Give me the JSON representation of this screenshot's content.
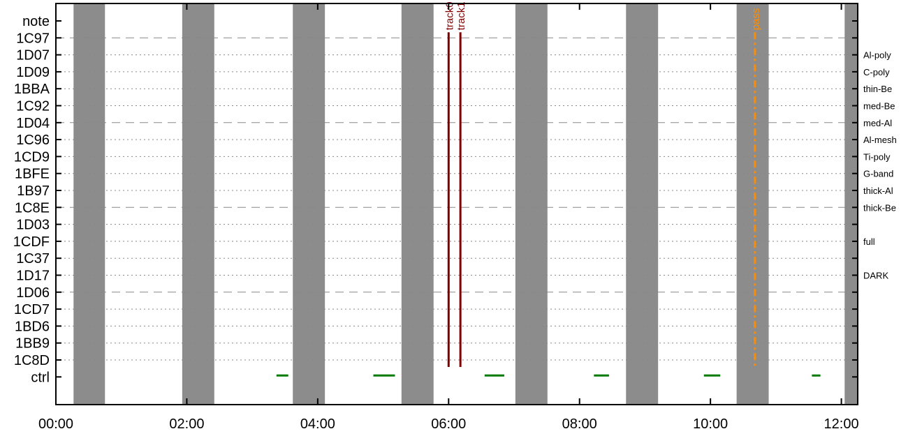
{
  "chart_data": {
    "type": "timeline",
    "title": "",
    "xlabel": "",
    "ylabel": "",
    "x_unit": "hours",
    "xlim": [
      0,
      12.25
    ],
    "x_ticks": [
      {
        "value": 0,
        "label": "00:00"
      },
      {
        "value": 2,
        "label": "02:00"
      },
      {
        "value": 4,
        "label": "04:00"
      },
      {
        "value": 6,
        "label": "06:00"
      },
      {
        "value": 8,
        "label": "08:00"
      },
      {
        "value": 10,
        "label": "10:00"
      },
      {
        "value": 12,
        "label": "12:00"
      }
    ],
    "rows": [
      {
        "label": "note",
        "note": "",
        "grid": "none"
      },
      {
        "label": "1C97",
        "note": "",
        "grid": "dashed"
      },
      {
        "label": "1D07",
        "note": "Al-poly",
        "grid": "dotted"
      },
      {
        "label": "1D09",
        "note": "C-poly",
        "grid": "dotted"
      },
      {
        "label": "1BBA",
        "note": "thin-Be",
        "grid": "dotted"
      },
      {
        "label": "1C92",
        "note": "med-Be",
        "grid": "dotted"
      },
      {
        "label": "1D04",
        "note": "med-Al",
        "grid": "dashed"
      },
      {
        "label": "1C96",
        "note": "Al-mesh",
        "grid": "dotted"
      },
      {
        "label": "1CD9",
        "note": "Ti-poly",
        "grid": "dotted"
      },
      {
        "label": "1BFE",
        "note": "G-band",
        "grid": "dotted"
      },
      {
        "label": "1B97",
        "note": "thick-Al",
        "grid": "dotted"
      },
      {
        "label": "1C8E",
        "note": "thick-Be",
        "grid": "dashed"
      },
      {
        "label": "1D03",
        "note": "",
        "grid": "dotted"
      },
      {
        "label": "1CDF",
        "note": "full",
        "grid": "dotted"
      },
      {
        "label": "1C37",
        "note": "",
        "grid": "dotted"
      },
      {
        "label": "1D17",
        "note": "DARK",
        "grid": "dotted"
      },
      {
        "label": "1D06",
        "note": "",
        "grid": "dashed"
      },
      {
        "label": "1CD7",
        "note": "",
        "grid": "dotted"
      },
      {
        "label": "1BD6",
        "note": "",
        "grid": "dotted"
      },
      {
        "label": "1BB9",
        "note": "",
        "grid": "dotted"
      },
      {
        "label": "1C8D",
        "note": "",
        "grid": "dotted"
      },
      {
        "label": "ctrl",
        "note": "",
        "grid": "none"
      }
    ],
    "gray_bands": [
      [
        0.27,
        0.75
      ],
      [
        1.93,
        2.42
      ],
      [
        3.62,
        4.11
      ],
      [
        5.28,
        5.77
      ],
      [
        7.02,
        7.51
      ],
      [
        8.71,
        9.2
      ],
      [
        10.4,
        10.89
      ],
      [
        12.05,
        12.54
      ]
    ],
    "ctrl_segments": [
      [
        3.37,
        3.55
      ],
      [
        4.85,
        5.18
      ],
      [
        6.55,
        6.85
      ],
      [
        8.22,
        8.45
      ],
      [
        9.9,
        10.15
      ],
      [
        11.55,
        11.68
      ]
    ],
    "markers": [
      {
        "label": "track0",
        "x": 6.0,
        "color": "#800000",
        "style": "solid"
      },
      {
        "label": "track1",
        "x": 6.18,
        "color": "#800000",
        "style": "solid"
      },
      {
        "label": "pass",
        "x": 10.68,
        "color": "#ff8c00",
        "style": "dashdot"
      }
    ],
    "colors": {
      "band": "#8c8c8c",
      "ctrl": "#007a00",
      "grid": "#888888"
    }
  }
}
